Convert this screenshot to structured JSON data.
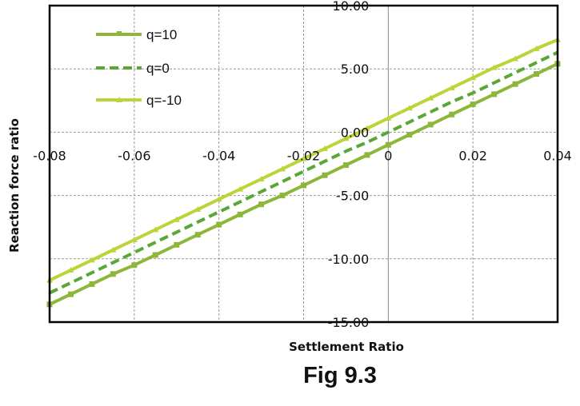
{
  "caption": "Fig 9.3",
  "chart_data": {
    "type": "line",
    "title": "",
    "xlabel": "Settlement Ratio",
    "ylabel": "Reaction force ratio",
    "xlim": [
      -0.08,
      0.04
    ],
    "ylim": [
      -15,
      10
    ],
    "x_ticks": [
      "-0.08",
      "-0.06",
      "-0.04",
      "-0.02",
      "0",
      "0.02",
      "0.04"
    ],
    "y_ticks": [
      "10.00",
      "5.00",
      "0.00",
      "-5.00",
      "-10.00",
      "-15.00"
    ],
    "grid": true,
    "legend_position": "upper-left-inside",
    "x": [
      -0.08,
      -0.075,
      -0.07,
      -0.065,
      -0.06,
      -0.055,
      -0.05,
      -0.045,
      -0.04,
      -0.035,
      -0.03,
      -0.025,
      -0.02,
      -0.015,
      -0.01,
      -0.005,
      0.0,
      0.005,
      0.01,
      0.015,
      0.02,
      0.025,
      0.03,
      0.035,
      0.04
    ],
    "series": [
      {
        "name": "q=10",
        "color": "#8db63a",
        "style": "solid",
        "marker": "square",
        "values": [
          -13.6,
          -12.8,
          -12.0,
          -11.2,
          -10.5,
          -9.7,
          -8.9,
          -8.1,
          -7.3,
          -6.5,
          -5.7,
          -5.0,
          -4.2,
          -3.4,
          -2.6,
          -1.8,
          -1.0,
          -0.2,
          0.6,
          1.4,
          2.2,
          3.0,
          3.8,
          4.6,
          5.4
        ]
      },
      {
        "name": "q=0",
        "color": "#5aa636",
        "style": "dashed",
        "marker": "none",
        "values": [
          -12.7,
          -11.9,
          -11.1,
          -10.3,
          -9.5,
          -8.7,
          -7.9,
          -7.1,
          -6.3,
          -5.5,
          -4.7,
          -3.9,
          -3.1,
          -2.3,
          -1.5,
          -0.8,
          0.0,
          0.8,
          1.6,
          2.4,
          3.1,
          3.9,
          4.7,
          5.5,
          6.3
        ]
      },
      {
        "name": "q=-10",
        "color": "#bcd438",
        "style": "solid",
        "marker": "triangle",
        "values": [
          -11.7,
          -10.9,
          -10.1,
          -9.3,
          -8.5,
          -7.7,
          -6.9,
          -6.1,
          -5.3,
          -4.5,
          -3.7,
          -2.9,
          -2.1,
          -1.3,
          -0.5,
          0.3,
          1.1,
          1.9,
          2.7,
          3.5,
          4.3,
          5.1,
          5.8,
          6.6,
          7.3
        ]
      }
    ]
  }
}
